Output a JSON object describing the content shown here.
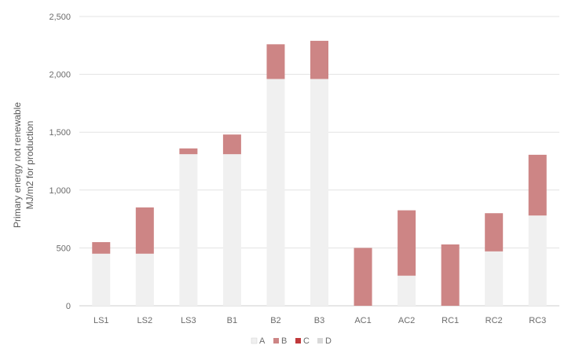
{
  "chart_data": {
    "type": "bar",
    "stacked": true,
    "ylabel_lines": [
      "Primary energy not renewable",
      "MJ/m2 for production"
    ],
    "ylim": [
      0,
      2500
    ],
    "yticks": [
      0,
      500,
      1000,
      1500,
      2000,
      2500
    ],
    "ytick_labels": [
      "0",
      "500",
      "1,000",
      "1,500",
      "2,000",
      "2,500"
    ],
    "grid": true,
    "legend_position": "bottom",
    "categories": [
      "LS1",
      "LS2",
      "LS3",
      "B1",
      "B2",
      "B3",
      "AC1",
      "AC2",
      "RC1",
      "RC2",
      "RC3"
    ],
    "series": [
      {
        "name": "A",
        "color": "#f0f0f0",
        "values": [
          450,
          450,
          1310,
          1310,
          1960,
          1960,
          0,
          260,
          0,
          470,
          780
        ]
      },
      {
        "name": "B",
        "color": "#cd8585",
        "values": [
          100,
          400,
          50,
          170,
          300,
          330,
          500,
          565,
          530,
          330,
          525
        ]
      },
      {
        "name": "C",
        "color": "#c0393b",
        "values": [
          0,
          0,
          0,
          0,
          0,
          0,
          0,
          0,
          0,
          0,
          0
        ]
      },
      {
        "name": "D",
        "color": "#d9d9d9",
        "values": [
          0,
          0,
          0,
          0,
          0,
          0,
          0,
          0,
          0,
          0,
          0
        ]
      }
    ]
  }
}
